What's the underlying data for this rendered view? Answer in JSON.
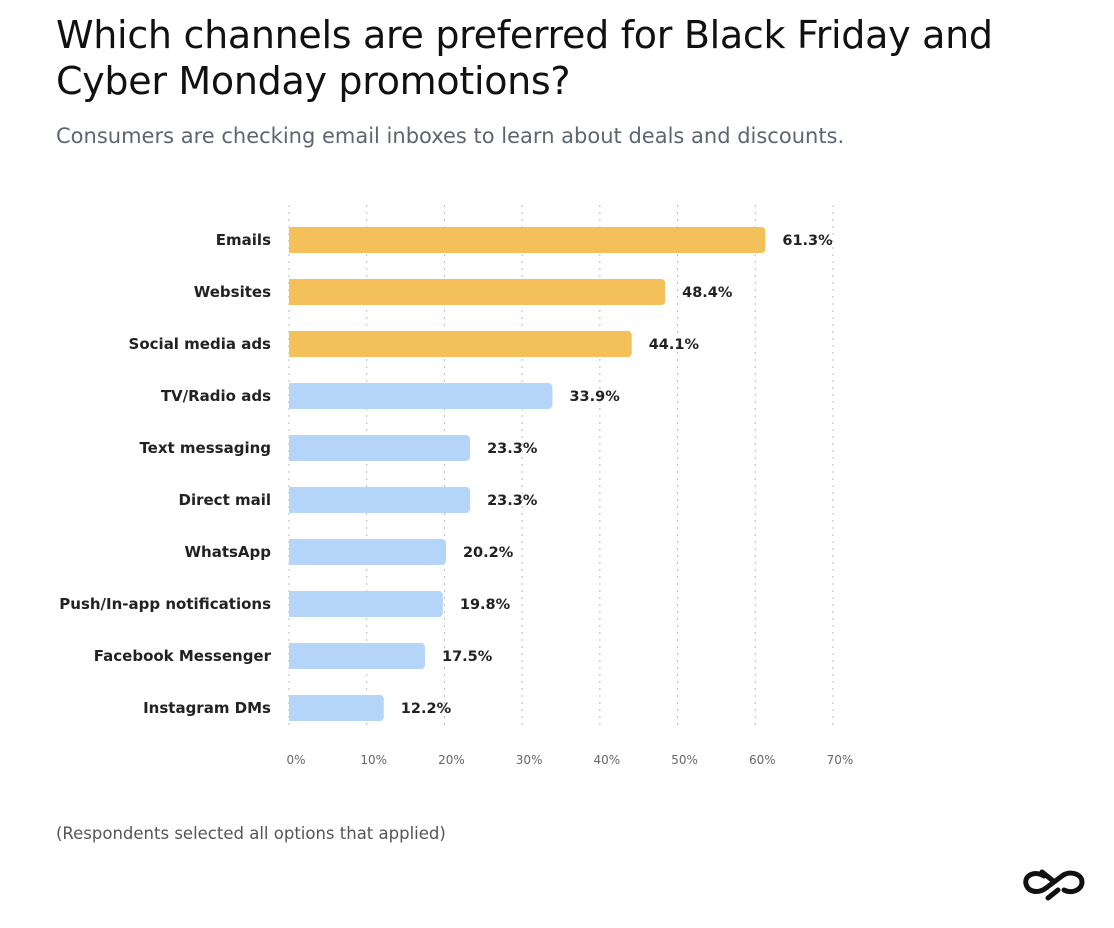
{
  "title": "Which channels are preferred for Black Friday and Cyber Monday promotions?",
  "subtitle": "Consumers are checking email inboxes to learn about deals and discounts.",
  "footnote": "(Respondents selected all options that applied)",
  "colors": {
    "highlight": "#F4C05A",
    "default": "#B5D5F8",
    "grid": "#bbbbbb"
  },
  "chart_data": {
    "type": "bar",
    "orientation": "horizontal",
    "categories": [
      "Emails",
      "Websites",
      "Social media ads",
      "TV/Radio ads",
      "Text messaging",
      "Direct mail",
      "WhatsApp",
      "Push/In-app notifications",
      "Facebook Messenger",
      "Instagram DMs"
    ],
    "values": [
      61.3,
      48.4,
      44.1,
      33.9,
      23.3,
      23.3,
      20.2,
      19.8,
      17.5,
      12.2
    ],
    "value_labels": [
      "61.3%",
      "48.4%",
      "44.1%",
      "33.9%",
      "23.3%",
      "23.3%",
      "20.2%",
      "19.8%",
      "17.5%",
      "12.2%"
    ],
    "highlighted": [
      true,
      true,
      true,
      false,
      false,
      false,
      false,
      false,
      false,
      false
    ],
    "xlim": [
      0,
      70
    ],
    "xticks": [
      0,
      10,
      20,
      30,
      40,
      50,
      60,
      70
    ],
    "xtick_labels": [
      "0%",
      "10%",
      "20%",
      "30%",
      "40%",
      "50%",
      "60%",
      "70%"
    ],
    "grid": true,
    "xlabel": "",
    "ylabel": ""
  }
}
